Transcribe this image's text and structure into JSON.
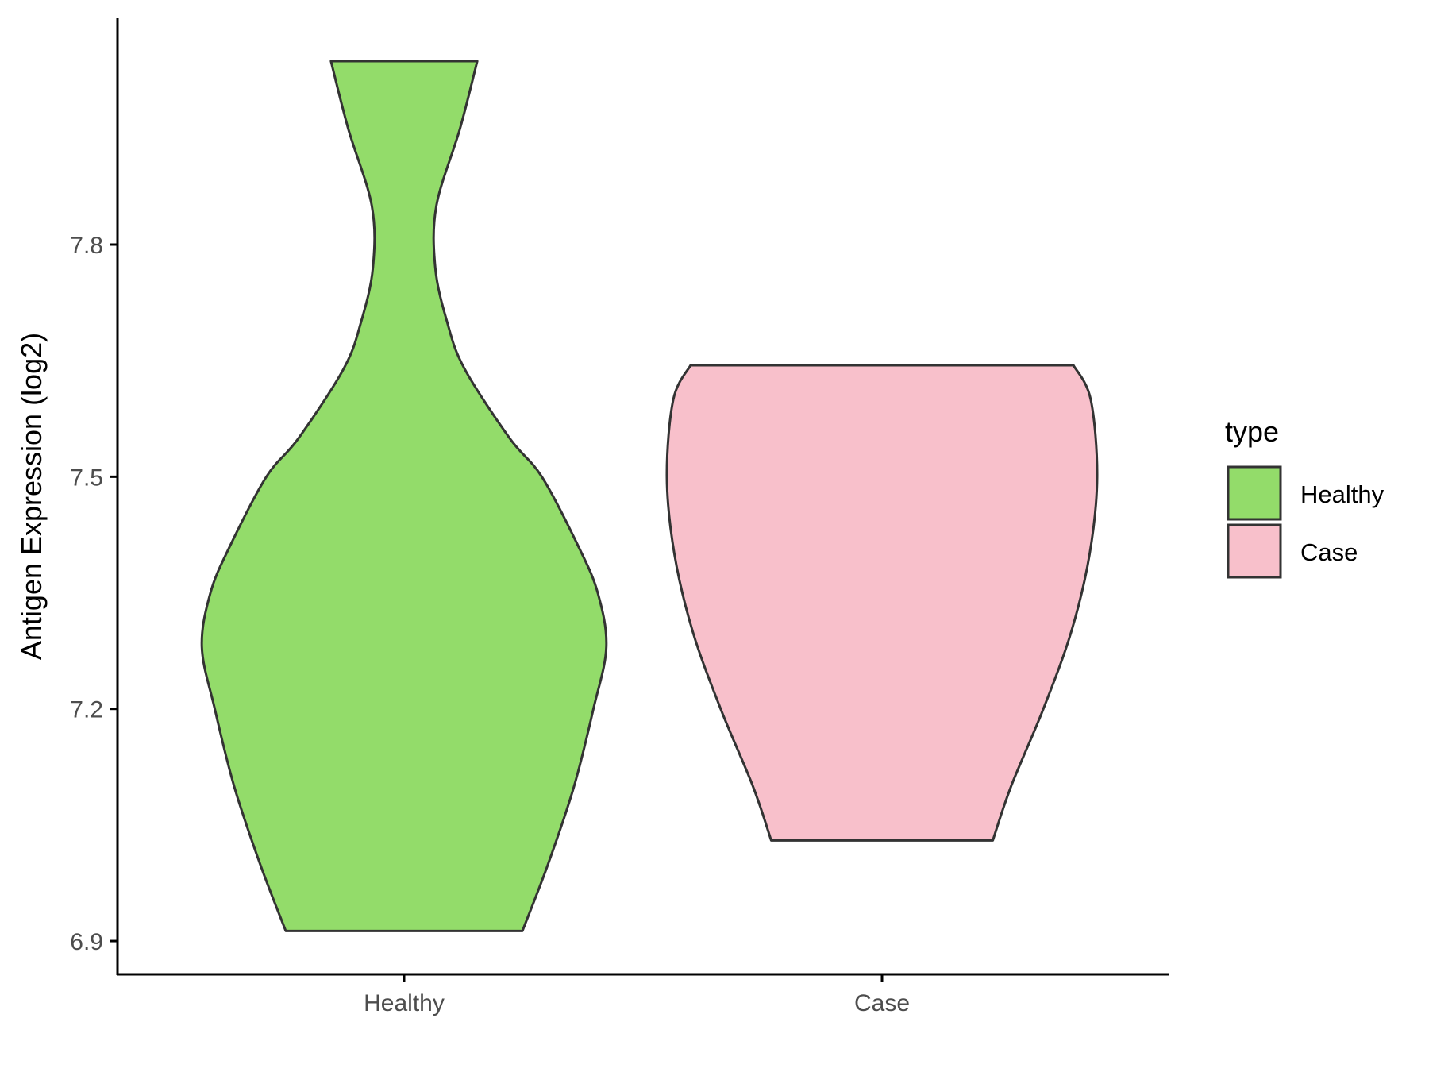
{
  "chart_data": {
    "type": "violin",
    "xlabel": "",
    "ylabel": "Antigen Expression (log2)",
    "categories": [
      "Healthy",
      "Case"
    ],
    "yticks": [
      6.9,
      7.2,
      7.5,
      7.8
    ],
    "ytick_labels": [
      "6.9",
      "7.2",
      "7.5",
      "7.8"
    ],
    "ylim": [
      6.85,
      8.08
    ],
    "grid": false,
    "legend": {
      "title": "type",
      "position": "right",
      "entries": [
        "Healthy",
        "Case"
      ]
    },
    "colors": {
      "Healthy": "#93DC6A",
      "Case": "#F8C0CB",
      "outline": "#333333"
    },
    "series": [
      {
        "name": "Healthy",
        "min": 6.913,
        "max": 8.037,
        "density_profile": [
          [
            6.913,
            0.55
          ],
          [
            7.0,
            0.67
          ],
          [
            7.1,
            0.79
          ],
          [
            7.2,
            0.88
          ],
          [
            7.28,
            0.94
          ],
          [
            7.35,
            0.9
          ],
          [
            7.41,
            0.81
          ],
          [
            7.5,
            0.64
          ],
          [
            7.55,
            0.49
          ],
          [
            7.64,
            0.28
          ],
          [
            7.7,
            0.2
          ],
          [
            7.77,
            0.145
          ],
          [
            7.85,
            0.15
          ],
          [
            7.95,
            0.26
          ],
          [
            8.037,
            0.34
          ]
        ]
      },
      {
        "name": "Case",
        "min": 7.03,
        "max": 7.644,
        "density_profile": [
          [
            7.03,
            0.515
          ],
          [
            7.1,
            0.6
          ],
          [
            7.2,
            0.75
          ],
          [
            7.3,
            0.88
          ],
          [
            7.4,
            0.965
          ],
          [
            7.5,
            1.0
          ],
          [
            7.6,
            0.97
          ],
          [
            7.644,
            0.89
          ]
        ]
      }
    ]
  }
}
